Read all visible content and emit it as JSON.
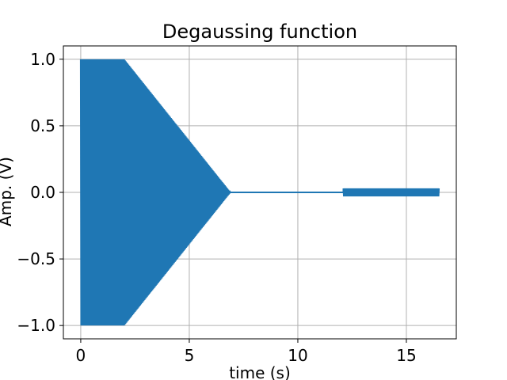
{
  "chart_data": {
    "type": "line",
    "title": "Degaussing function",
    "xlabel": "time (s)",
    "ylabel": "Amp. (V)",
    "xlim": [
      -0.8,
      17.3
    ],
    "ylim": [
      -1.1,
      1.1
    ],
    "xticks": [
      0,
      5,
      10,
      15
    ],
    "xtick_labels": [
      "0",
      "5",
      "10",
      "15"
    ],
    "yticks": [
      1.0,
      0.5,
      0.0,
      -0.5,
      -1.0
    ],
    "ytick_labels": [
      "1.0",
      "0.5",
      "0.0",
      "−0.5",
      "−1.0"
    ],
    "grid": true,
    "series": [
      {
        "color": "#1f77b4",
        "envelope": {
          "t_start": 0.0,
          "t_plateau_end": 2.0,
          "t_decay_end": 6.9,
          "amplitude": 1.0,
          "oscillation_period_s": 0.04
        },
        "segments": [
          {
            "t": [
              0.0,
              2.0
            ],
            "amplitude": 1.0
          },
          {
            "t": [
              2.0,
              6.9
            ],
            "amplitude_from": 1.0,
            "amplitude_to": 0.0
          },
          {
            "t": [
              6.9,
              12.1
            ],
            "amplitude": 0.0
          },
          {
            "t": [
              12.1,
              16.5
            ],
            "amplitude": 0.03
          }
        ]
      }
    ]
  }
}
